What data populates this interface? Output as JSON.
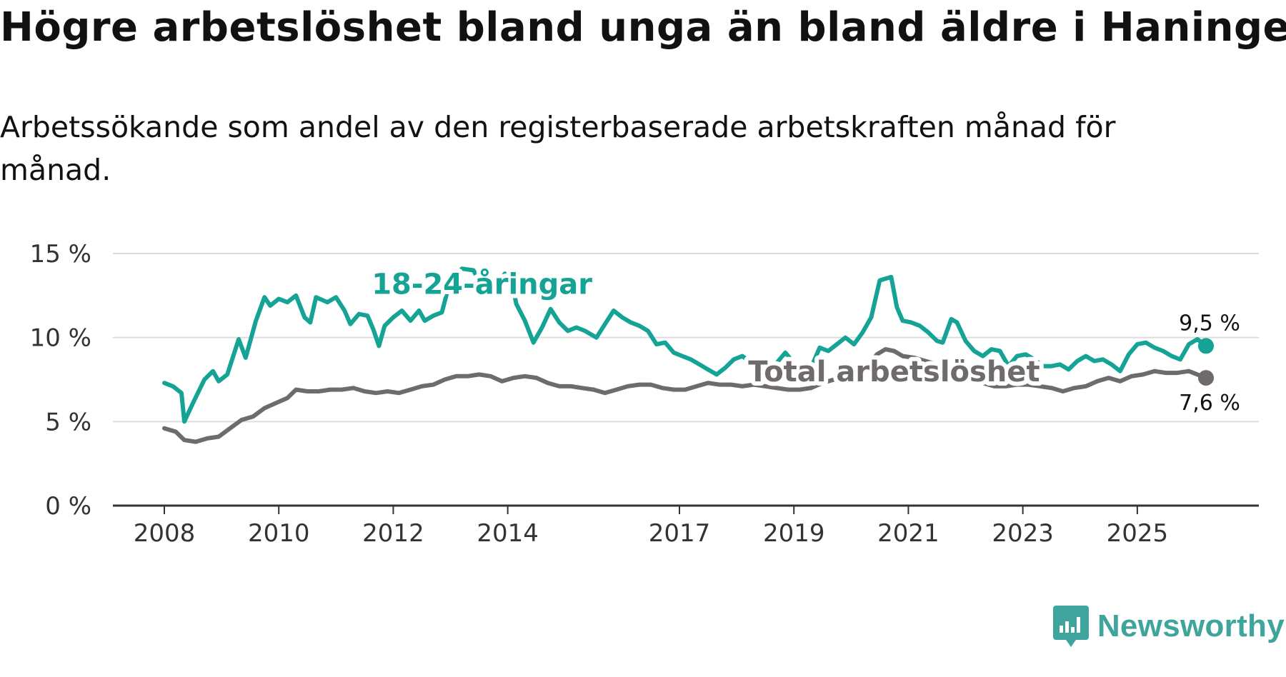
{
  "header": {
    "title": "Högre arbetslöshet bland unga än bland äldre i Haninge",
    "subtitle": "Arbetssökande som andel av den registerbaserade arbetskraften månad för månad."
  },
  "brand": {
    "name": "Newsworthy",
    "icon": "newsworthy-logo-icon",
    "color": "#3fa59c"
  },
  "chart_data": {
    "type": "line",
    "title": "Högre arbetslöshet bland unga än bland äldre i Haninge",
    "subtitle": "Arbetssökande som andel av den registerbaserade arbetskraften månad för månad.",
    "xlabel": "",
    "ylabel": "",
    "xlim": [
      2008.0,
      2026.6
    ],
    "ylim": [
      0,
      15
    ],
    "grid": true,
    "legend": "inline",
    "x_ticks": [
      {
        "value": 2008,
        "label": "2008"
      },
      {
        "value": 2010,
        "label": "2010"
      },
      {
        "value": 2012,
        "label": "2012"
      },
      {
        "value": 2014,
        "label": "2014"
      },
      {
        "value": 2017,
        "label": "2017"
      },
      {
        "value": 2019,
        "label": "2019"
      },
      {
        "value": 2021,
        "label": "2021"
      },
      {
        "value": 2023,
        "label": "2023"
      },
      {
        "value": 2025,
        "label": "2025"
      }
    ],
    "y_ticks": [
      {
        "value": 0,
        "label": "0 %"
      },
      {
        "value": 5,
        "label": "5 %"
      },
      {
        "value": 10,
        "label": "10 %"
      },
      {
        "value": 15,
        "label": "15 %"
      }
    ],
    "series": [
      {
        "name": "18-24-åringar",
        "color": "#14a394",
        "end_label": "9,5 %",
        "label_pos": {
          "x": 2013.55,
          "y": 12.6
        },
        "points": [
          [
            2008.0,
            7.3
          ],
          [
            2008.15,
            7.1
          ],
          [
            2008.3,
            6.7
          ],
          [
            2008.35,
            5.0
          ],
          [
            2008.5,
            6.1
          ],
          [
            2008.7,
            7.5
          ],
          [
            2008.85,
            8.0
          ],
          [
            2008.95,
            7.4
          ],
          [
            2009.1,
            7.8
          ],
          [
            2009.3,
            9.9
          ],
          [
            2009.42,
            8.8
          ],
          [
            2009.6,
            11.0
          ],
          [
            2009.75,
            12.4
          ],
          [
            2009.85,
            11.9
          ],
          [
            2010.0,
            12.3
          ],
          [
            2010.15,
            12.1
          ],
          [
            2010.3,
            12.5
          ],
          [
            2010.45,
            11.2
          ],
          [
            2010.55,
            10.9
          ],
          [
            2010.65,
            12.4
          ],
          [
            2010.85,
            12.1
          ],
          [
            2011.0,
            12.4
          ],
          [
            2011.15,
            11.6
          ],
          [
            2011.25,
            10.8
          ],
          [
            2011.4,
            11.4
          ],
          [
            2011.55,
            11.3
          ],
          [
            2011.65,
            10.5
          ],
          [
            2011.75,
            9.5
          ],
          [
            2011.85,
            10.7
          ],
          [
            2012.0,
            11.2
          ],
          [
            2012.15,
            11.6
          ],
          [
            2012.3,
            11.0
          ],
          [
            2012.45,
            11.6
          ],
          [
            2012.55,
            11.0
          ],
          [
            2012.7,
            11.3
          ],
          [
            2012.85,
            11.5
          ],
          [
            2012.95,
            12.8
          ],
          [
            2013.05,
            13.5
          ],
          [
            2013.2,
            14.1
          ],
          [
            2013.4,
            14.0
          ],
          [
            2013.55,
            13.1
          ],
          [
            2013.7,
            12.6
          ],
          [
            2013.85,
            13.4
          ],
          [
            2013.95,
            13.8
          ],
          [
            2014.05,
            13.6
          ],
          [
            2014.15,
            12.0
          ],
          [
            2014.3,
            11.0
          ],
          [
            2014.45,
            9.7
          ],
          [
            2014.6,
            10.6
          ],
          [
            2014.75,
            11.7
          ],
          [
            2014.9,
            10.9
          ],
          [
            2015.05,
            10.4
          ],
          [
            2015.2,
            10.6
          ],
          [
            2015.35,
            10.4
          ],
          [
            2015.55,
            10.0
          ],
          [
            2015.7,
            10.8
          ],
          [
            2015.85,
            11.6
          ],
          [
            2016.0,
            11.2
          ],
          [
            2016.15,
            10.9
          ],
          [
            2016.3,
            10.7
          ],
          [
            2016.45,
            10.4
          ],
          [
            2016.6,
            9.6
          ],
          [
            2016.75,
            9.7
          ],
          [
            2016.9,
            9.1
          ],
          [
            2017.05,
            8.9
          ],
          [
            2017.2,
            8.7
          ],
          [
            2017.35,
            8.4
          ],
          [
            2017.5,
            8.1
          ],
          [
            2017.65,
            7.8
          ],
          [
            2017.8,
            8.2
          ],
          [
            2017.95,
            8.7
          ],
          [
            2018.1,
            8.9
          ],
          [
            2018.25,
            8.5
          ],
          [
            2018.4,
            8.2
          ],
          [
            2018.55,
            8.0
          ],
          [
            2018.7,
            8.5
          ],
          [
            2018.85,
            9.1
          ],
          [
            2019.0,
            8.5
          ],
          [
            2019.15,
            8.0
          ],
          [
            2019.3,
            8.2
          ],
          [
            2019.45,
            9.4
          ],
          [
            2019.6,
            9.2
          ],
          [
            2019.75,
            9.6
          ],
          [
            2019.9,
            10.0
          ],
          [
            2020.05,
            9.6
          ],
          [
            2020.2,
            10.3
          ],
          [
            2020.35,
            11.2
          ],
          [
            2020.5,
            13.4
          ],
          [
            2020.6,
            13.5
          ],
          [
            2020.7,
            13.6
          ],
          [
            2020.8,
            11.8
          ],
          [
            2020.9,
            11.0
          ],
          [
            2021.05,
            10.9
          ],
          [
            2021.2,
            10.7
          ],
          [
            2021.35,
            10.3
          ],
          [
            2021.5,
            9.8
          ],
          [
            2021.6,
            9.7
          ],
          [
            2021.75,
            11.1
          ],
          [
            2021.85,
            10.9
          ],
          [
            2022.0,
            9.8
          ],
          [
            2022.15,
            9.2
          ],
          [
            2022.3,
            8.9
          ],
          [
            2022.45,
            9.3
          ],
          [
            2022.6,
            9.2
          ],
          [
            2022.75,
            8.3
          ],
          [
            2022.9,
            8.9
          ],
          [
            2023.05,
            9.0
          ],
          [
            2023.2,
            8.7
          ],
          [
            2023.35,
            8.3
          ],
          [
            2023.5,
            8.3
          ],
          [
            2023.65,
            8.4
          ],
          [
            2023.8,
            8.1
          ],
          [
            2023.95,
            8.6
          ],
          [
            2024.1,
            8.9
          ],
          [
            2024.25,
            8.6
          ],
          [
            2024.4,
            8.7
          ],
          [
            2024.55,
            8.4
          ],
          [
            2024.7,
            8.0
          ],
          [
            2024.85,
            9.0
          ],
          [
            2025.0,
            9.6
          ],
          [
            2025.15,
            9.7
          ],
          [
            2025.3,
            9.4
          ],
          [
            2025.45,
            9.2
          ],
          [
            2025.6,
            8.9
          ],
          [
            2025.75,
            8.7
          ],
          [
            2025.9,
            9.6
          ],
          [
            2026.05,
            9.9
          ],
          [
            2026.2,
            9.5
          ]
        ]
      },
      {
        "name": "Total arbetslöshet",
        "color": "#6e6a6e",
        "end_label": "7,6 %",
        "label_pos": {
          "x": 2020.75,
          "y": 7.4
        },
        "points": [
          [
            2008.0,
            4.6
          ],
          [
            2008.2,
            4.4
          ],
          [
            2008.35,
            3.9
          ],
          [
            2008.55,
            3.8
          ],
          [
            2008.75,
            4.0
          ],
          [
            2008.95,
            4.1
          ],
          [
            2009.15,
            4.6
          ],
          [
            2009.35,
            5.1
          ],
          [
            2009.55,
            5.3
          ],
          [
            2009.75,
            5.8
          ],
          [
            2009.95,
            6.1
          ],
          [
            2010.15,
            6.4
          ],
          [
            2010.3,
            6.9
          ],
          [
            2010.5,
            6.8
          ],
          [
            2010.7,
            6.8
          ],
          [
            2010.9,
            6.9
          ],
          [
            2011.1,
            6.9
          ],
          [
            2011.3,
            7.0
          ],
          [
            2011.5,
            6.8
          ],
          [
            2011.7,
            6.7
          ],
          [
            2011.9,
            6.8
          ],
          [
            2012.1,
            6.7
          ],
          [
            2012.3,
            6.9
          ],
          [
            2012.5,
            7.1
          ],
          [
            2012.7,
            7.2
          ],
          [
            2012.9,
            7.5
          ],
          [
            2013.1,
            7.7
          ],
          [
            2013.3,
            7.7
          ],
          [
            2013.5,
            7.8
          ],
          [
            2013.7,
            7.7
          ],
          [
            2013.9,
            7.4
          ],
          [
            2014.1,
            7.6
          ],
          [
            2014.3,
            7.7
          ],
          [
            2014.5,
            7.6
          ],
          [
            2014.7,
            7.3
          ],
          [
            2014.9,
            7.1
          ],
          [
            2015.1,
            7.1
          ],
          [
            2015.3,
            7.0
          ],
          [
            2015.5,
            6.9
          ],
          [
            2015.7,
            6.7
          ],
          [
            2015.9,
            6.9
          ],
          [
            2016.1,
            7.1
          ],
          [
            2016.3,
            7.2
          ],
          [
            2016.5,
            7.2
          ],
          [
            2016.7,
            7.0
          ],
          [
            2016.9,
            6.9
          ],
          [
            2017.1,
            6.9
          ],
          [
            2017.3,
            7.1
          ],
          [
            2017.5,
            7.3
          ],
          [
            2017.7,
            7.2
          ],
          [
            2017.9,
            7.2
          ],
          [
            2018.1,
            7.1
          ],
          [
            2018.3,
            7.2
          ],
          [
            2018.5,
            7.1
          ],
          [
            2018.7,
            7.0
          ],
          [
            2018.9,
            6.9
          ],
          [
            2019.1,
            6.9
          ],
          [
            2019.3,
            7.0
          ],
          [
            2019.5,
            7.3
          ],
          [
            2019.7,
            7.5
          ],
          [
            2019.9,
            7.6
          ],
          [
            2020.1,
            7.7
          ],
          [
            2020.3,
            8.3
          ],
          [
            2020.45,
            9.0
          ],
          [
            2020.6,
            9.3
          ],
          [
            2020.75,
            9.2
          ],
          [
            2020.9,
            8.9
          ],
          [
            2021.1,
            8.8
          ],
          [
            2021.3,
            8.6
          ],
          [
            2021.5,
            8.4
          ],
          [
            2021.7,
            8.1
          ],
          [
            2021.9,
            7.7
          ],
          [
            2022.1,
            7.5
          ],
          [
            2022.3,
            7.3
          ],
          [
            2022.5,
            7.1
          ],
          [
            2022.7,
            7.1
          ],
          [
            2022.9,
            7.2
          ],
          [
            2023.1,
            7.2
          ],
          [
            2023.3,
            7.1
          ],
          [
            2023.5,
            7.0
          ],
          [
            2023.7,
            6.8
          ],
          [
            2023.9,
            7.0
          ],
          [
            2024.1,
            7.1
          ],
          [
            2024.3,
            7.4
          ],
          [
            2024.5,
            7.6
          ],
          [
            2024.7,
            7.4
          ],
          [
            2024.9,
            7.7
          ],
          [
            2025.1,
            7.8
          ],
          [
            2025.3,
            8.0
          ],
          [
            2025.5,
            7.9
          ],
          [
            2025.7,
            7.9
          ],
          [
            2025.9,
            8.0
          ],
          [
            2026.05,
            7.8
          ],
          [
            2026.2,
            7.6
          ]
        ]
      }
    ]
  }
}
